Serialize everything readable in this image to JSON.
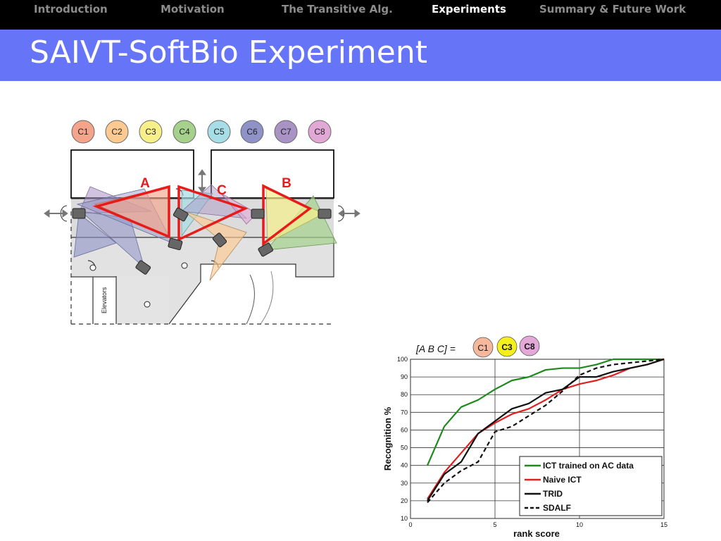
{
  "nav": {
    "items": [
      {
        "label": "Introduction",
        "active": false
      },
      {
        "label": "Motivation",
        "active": false
      },
      {
        "label": "The Transitive Alg.",
        "active": false
      },
      {
        "label": "Experiments",
        "active": true
      },
      {
        "label": "Summary & Future Work",
        "active": false
      }
    ],
    "colors": {
      "bar": "#000000",
      "active": "#ffffff",
      "inactive": "#8c8c8c"
    }
  },
  "slide": {
    "title": "SAIVT-SoftBio Experiment",
    "title_bar_color": "#6674f7"
  },
  "floorplan": {
    "cameras": [
      {
        "label": "C1",
        "color": "#f4a48a"
      },
      {
        "label": "C2",
        "color": "#fcc990"
      },
      {
        "label": "C3",
        "color": "#f6ef8a"
      },
      {
        "label": "C4",
        "color": "#a5d18c"
      },
      {
        "label": "C5",
        "color": "#a7dde6"
      },
      {
        "label": "C6",
        "color": "#8e92c6"
      },
      {
        "label": "C7",
        "color": "#a992c4"
      },
      {
        "label": "C8",
        "color": "#e2a8d5"
      }
    ],
    "regions": [
      {
        "label": "A"
      },
      {
        "label": "B"
      },
      {
        "label": "C"
      }
    ],
    "elevators_label": "Elevators",
    "highlight_color": "#e81b1b"
  },
  "chart_data": {
    "type": "line",
    "sequence_label": "[A B C] =",
    "sequence": [
      {
        "label": "C1",
        "color": "#f4b99c"
      },
      {
        "label": "C3",
        "color": "#f6f01a"
      },
      {
        "label": "C8",
        "color": "#e4a8d8"
      }
    ],
    "xlabel": "rank score",
    "ylabel": "Recognition %",
    "xlim": [
      0,
      15
    ],
    "ylim": [
      10,
      100
    ],
    "xticks": [
      0,
      5,
      10,
      15
    ],
    "yticks": [
      10,
      20,
      30,
      40,
      50,
      60,
      70,
      80,
      90,
      100
    ],
    "grid": true,
    "legend_position": "bottom-right",
    "series": [
      {
        "name": "ICT trained on AC data",
        "color": "#1e8a1e",
        "dash": false,
        "x": [
          1,
          2,
          3,
          4,
          5,
          6,
          7,
          8,
          9,
          10,
          11,
          12,
          13,
          14,
          15
        ],
        "y": [
          40,
          62,
          73,
          77,
          83,
          88,
          90,
          94,
          95,
          95,
          97,
          100,
          100,
          100,
          100
        ]
      },
      {
        "name": "Naive ICT",
        "color": "#e02020",
        "dash": false,
        "x": [
          1,
          2,
          3,
          4,
          5,
          6,
          7,
          8,
          9,
          10,
          11,
          12,
          13,
          14,
          15
        ],
        "y": [
          21,
          36,
          47,
          58,
          64,
          69,
          72,
          77,
          83,
          86,
          88,
          91,
          95,
          97,
          100
        ]
      },
      {
        "name": "TRID",
        "color": "#111111",
        "dash": false,
        "x": [
          1,
          2,
          3,
          4,
          5,
          6,
          7,
          8,
          9,
          10,
          11,
          12,
          13,
          14,
          15
        ],
        "y": [
          20,
          35,
          42,
          58,
          65,
          72,
          75,
          81,
          83,
          90,
          90,
          93,
          95,
          97,
          100
        ]
      },
      {
        "name": "SDALF",
        "color": "#111111",
        "dash": true,
        "x": [
          1,
          2,
          3,
          4,
          5,
          6,
          7,
          8,
          9,
          10,
          11,
          12,
          13,
          14,
          15
        ],
        "y": [
          19,
          30,
          37,
          42,
          59,
          62,
          68,
          74,
          82,
          91,
          95,
          97,
          98,
          99,
          100
        ]
      }
    ]
  }
}
